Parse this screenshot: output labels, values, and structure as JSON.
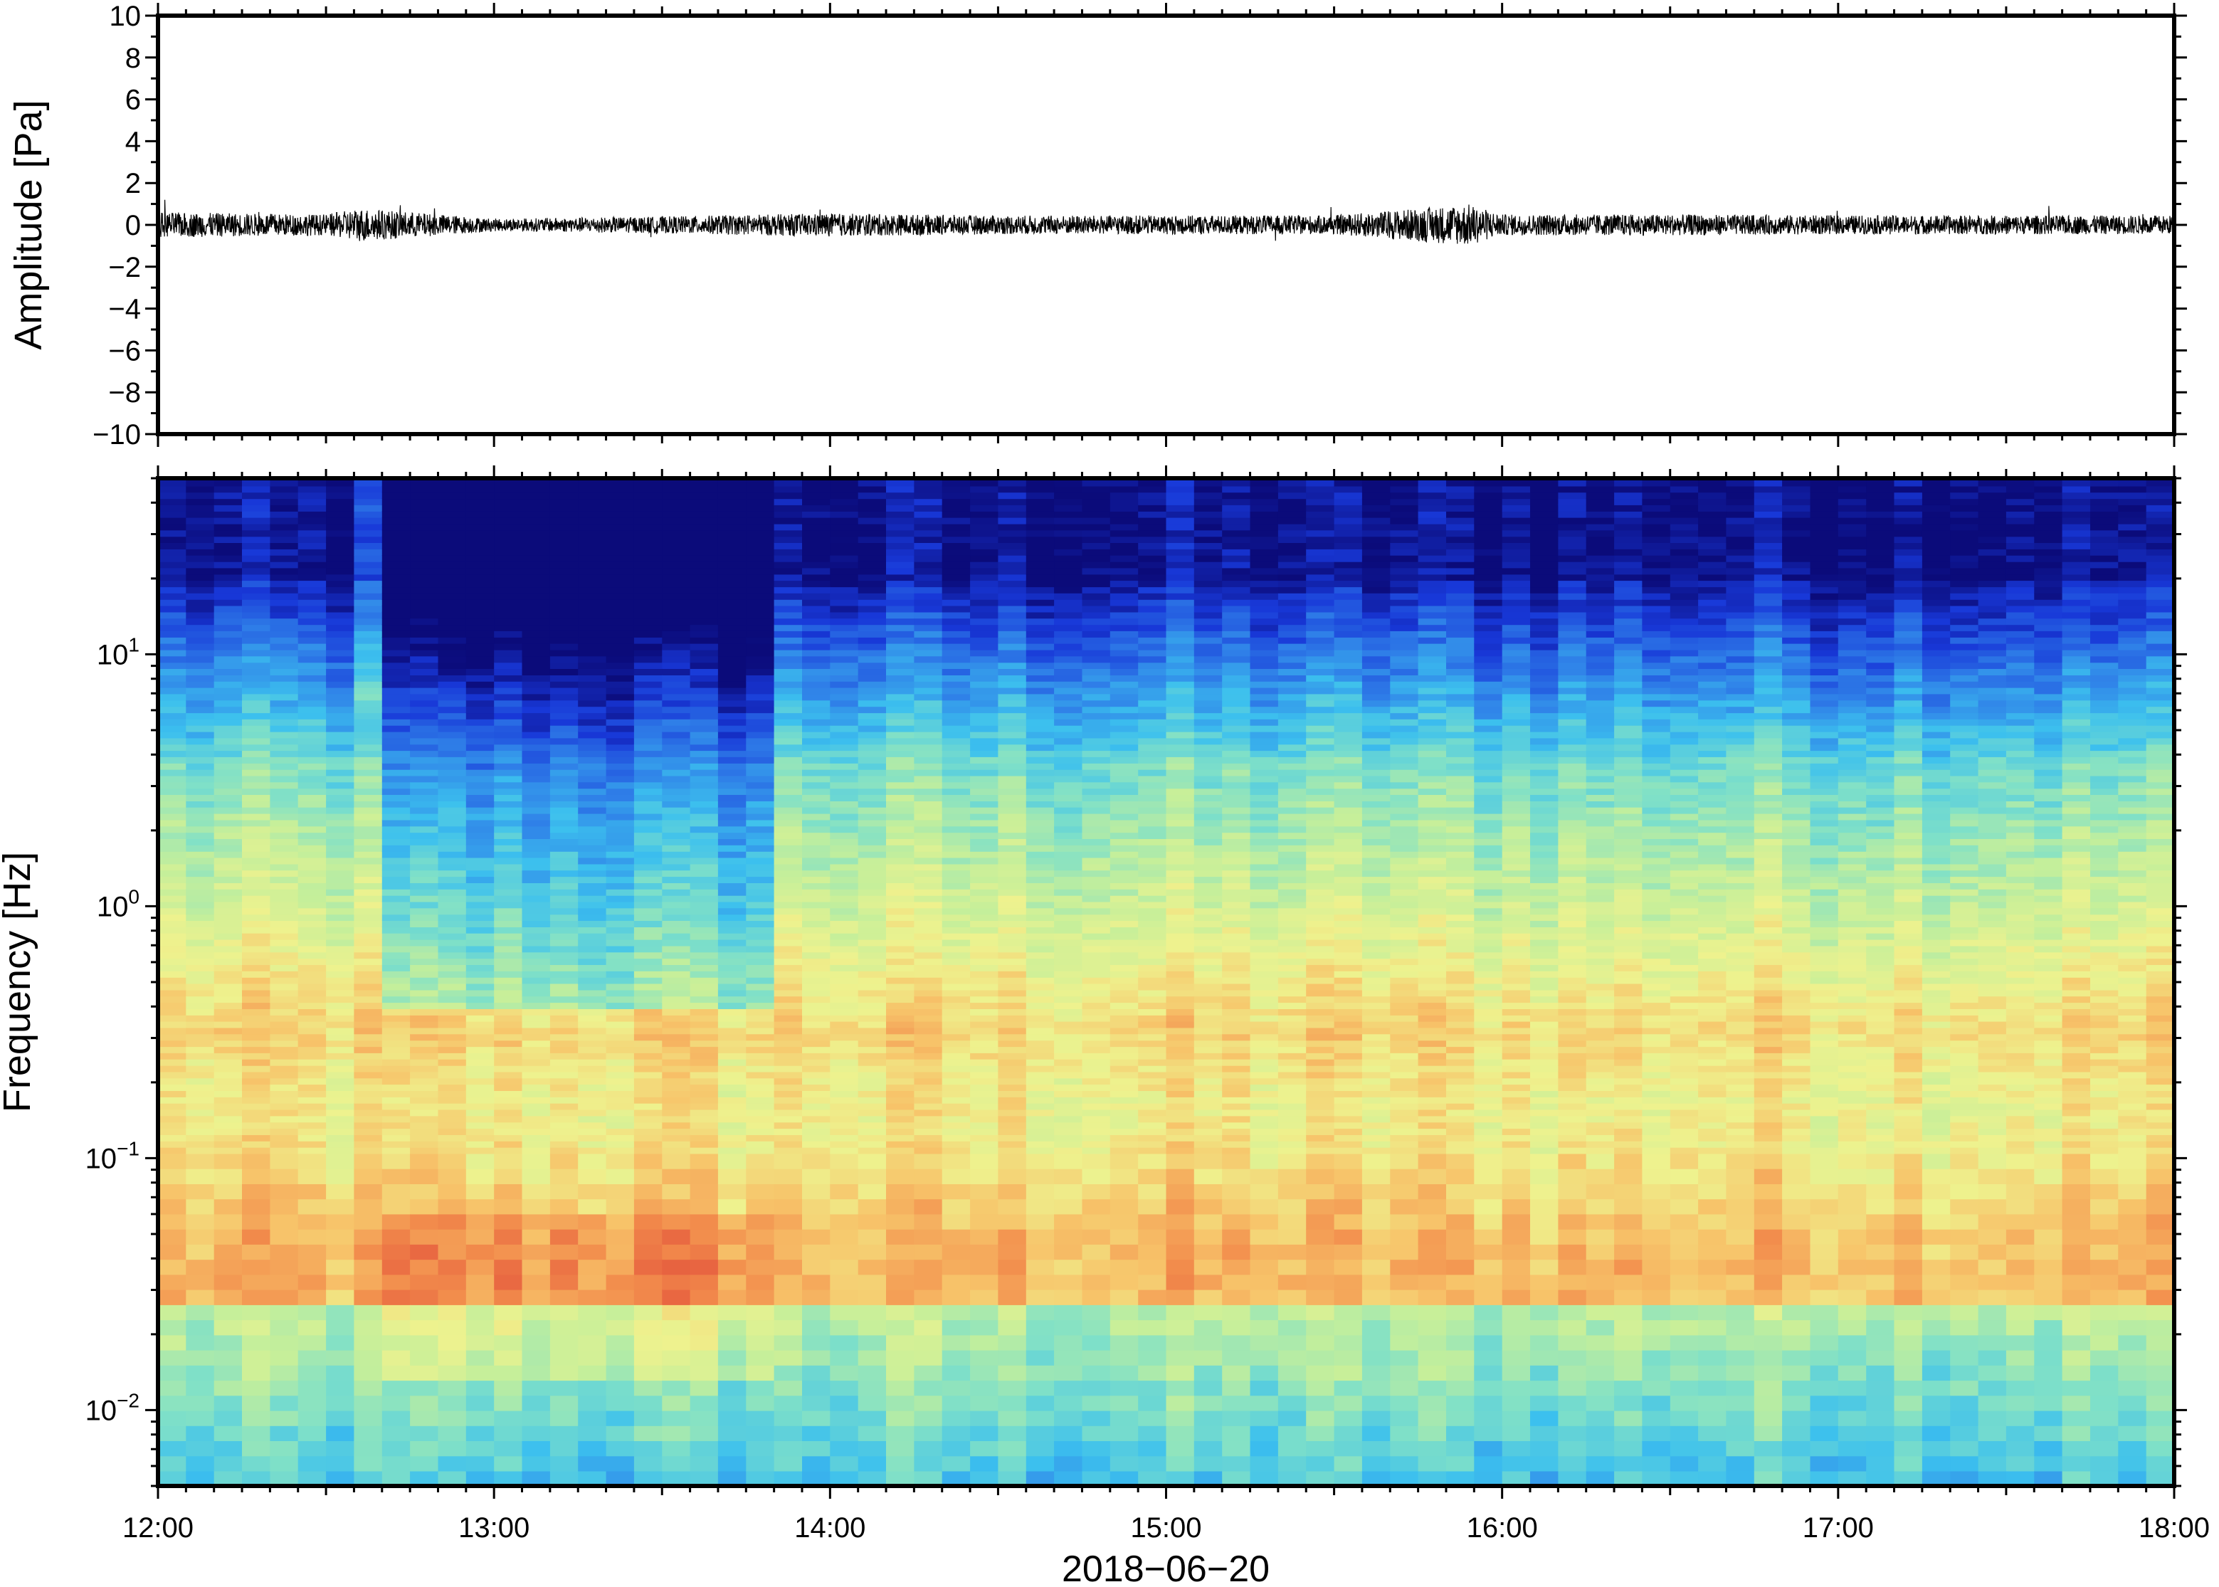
{
  "chart_data": [
    {
      "type": "line",
      "ylabel": "Amplitude [Pa]",
      "ylim": [
        -10,
        10
      ],
      "yticks": [
        10,
        8,
        6,
        4,
        2,
        0,
        -2,
        -4,
        -6,
        -8,
        -10
      ],
      "ytick_labels": [
        "10",
        "8",
        "6",
        "4",
        "2",
        "0",
        "−2",
        "−4",
        "−6",
        "−8",
        "−10"
      ],
      "xlim_hours": [
        12,
        18
      ],
      "series": [
        {
          "hours": [
            12.0,
            12.5,
            12.6,
            13.0,
            13.5,
            13.8,
            14.0,
            14.5,
            15.0,
            15.5,
            15.9,
            16.0,
            16.5,
            17.0,
            17.5,
            18.0
          ],
          "envelope_pa": [
            0.6,
            0.5,
            0.8,
            0.3,
            0.4,
            0.5,
            0.55,
            0.45,
            0.45,
            0.45,
            1.0,
            0.5,
            0.5,
            0.45,
            0.45,
            0.45
          ]
        }
      ],
      "color": "#000000"
    },
    {
      "type": "heatmap",
      "ylabel": "Frequency [Hz]",
      "yscale": "log",
      "ylim": [
        0.005,
        50
      ],
      "yticks": [
        10,
        1,
        0.1,
        0.01
      ],
      "ytick_labels": [
        {
          "base": "10",
          "exp": "1"
        },
        {
          "base": "10",
          "exp": "0"
        },
        {
          "base": "10",
          "exp": "−1"
        },
        {
          "base": "10",
          "exp": "−2"
        }
      ],
      "xlabel": "2018−06−20",
      "xticks": [
        "12:00",
        "13:00",
        "14:00",
        "15:00",
        "16:00",
        "17:00",
        "18:00"
      ],
      "xlim_hours": [
        12,
        18
      ],
      "colormap": [
        "#0b0b7a",
        "#1838d8",
        "#2f7fe8",
        "#3cc0ee",
        "#7fe0c8",
        "#c6ef9a",
        "#eef28e",
        "#f7c46a",
        "#f28c4c",
        "#e4553c"
      ],
      "quiet_interval_hours": [
        12.7,
        13.8
      ],
      "high_energy_band_hz": [
        0.03,
        0.3
      ]
    }
  ]
}
